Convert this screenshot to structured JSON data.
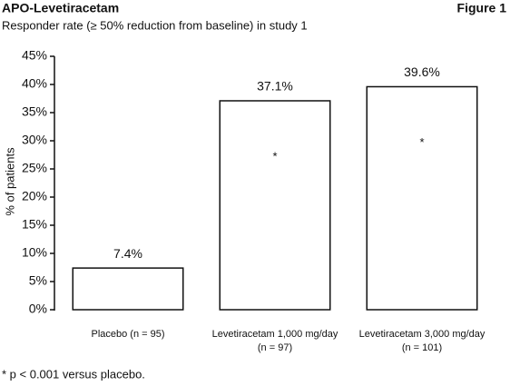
{
  "chart_data": {
    "type": "bar",
    "title": "APO-Levetiracetam",
    "figure_label": "Figure 1",
    "subtitle": "Responder rate (≥ 50% reduction from baseline) in study 1",
    "y_label": "% of patients",
    "categories": [
      [
        "Placebo (n = 95)"
      ],
      [
        "Levetiracetam 1,000 mg/day",
        "(n = 97)"
      ],
      [
        "Levetiracetam 3,000 mg/day",
        "(n = 101)"
      ]
    ],
    "values": [
      7.4,
      37.1,
      39.6
    ],
    "value_labels": [
      "7.4%",
      "37.1%",
      "39.6%"
    ],
    "bar_annotations": [
      null,
      "*",
      "*"
    ],
    "color": "#ffffff",
    "ylim": [
      0,
      45
    ],
    "yticks": [
      {
        "value": 0,
        "label": "0%"
      },
      {
        "value": 5,
        "label": "5%"
      },
      {
        "value": 10,
        "label": "10%"
      },
      {
        "value": 15,
        "label": "15%"
      },
      {
        "value": 20,
        "label": "20%"
      },
      {
        "value": 25,
        "label": "25%"
      },
      {
        "value": 30,
        "label": "30%"
      },
      {
        "value": 35,
        "label": "35%"
      },
      {
        "value": 40,
        "label": "40%"
      },
      {
        "value": 45,
        "label": "45%"
      }
    ],
    "grid": false,
    "footnote": "* p < 0.001 versus placebo."
  }
}
